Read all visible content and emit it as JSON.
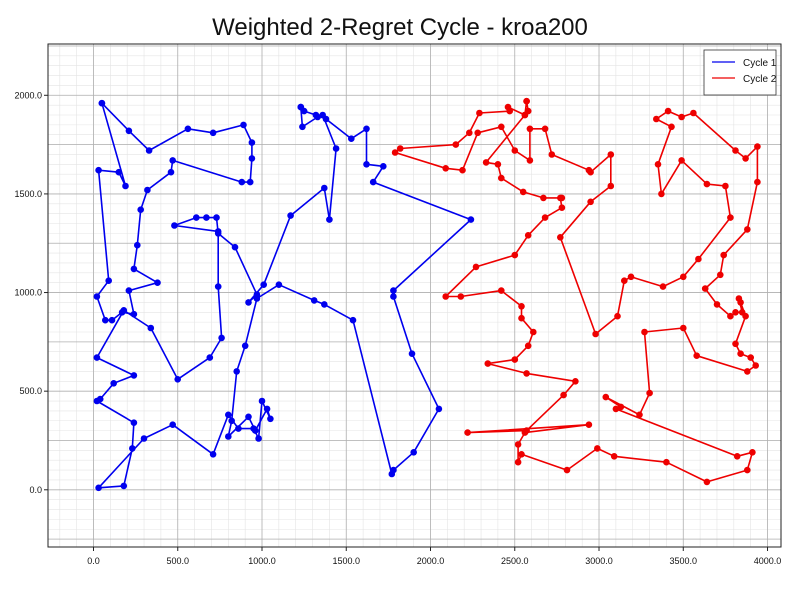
{
  "chart_data": {
    "type": "line",
    "title": "Weighted 2-Regret Cycle - kroa200",
    "xlabel": "",
    "ylabel": "",
    "xlim": [
      -270,
      4080
    ],
    "ylim": [
      -290,
      2260
    ],
    "xticks": [
      0,
      500,
      1000,
      1500,
      2000,
      2500,
      3000,
      3500,
      4000
    ],
    "yticks": [
      0,
      500,
      1000,
      1500,
      2000
    ],
    "xtick_labels": [
      "0.0",
      "500.0",
      "1000.0",
      "1500.0",
      "2000.0",
      "2500.0",
      "3000.0",
      "3500.0",
      "4000.0"
    ],
    "ytick_labels": [
      "0.0",
      "500.0",
      "1000.0",
      "1500.0",
      "2000.0"
    ],
    "grid": true,
    "minor_grid": true,
    "legend_position": "top-right",
    "series": [
      {
        "name": "Cycle 1",
        "color": "#0000ee",
        "points": [
          [
            50,
            1960
          ],
          [
            210,
            1820
          ],
          [
            330,
            1720
          ],
          [
            560,
            1830
          ],
          [
            710,
            1810
          ],
          [
            890,
            1850
          ],
          [
            940,
            1760
          ],
          [
            940,
            1680
          ],
          [
            930,
            1560
          ],
          [
            880,
            1560
          ],
          [
            470,
            1670
          ],
          [
            460,
            1610
          ],
          [
            320,
            1520
          ],
          [
            280,
            1420
          ],
          [
            260,
            1240
          ],
          [
            240,
            1120
          ],
          [
            380,
            1050
          ],
          [
            210,
            1010
          ],
          [
            240,
            890
          ],
          [
            170,
            900
          ],
          [
            110,
            860
          ],
          [
            70,
            860
          ],
          [
            20,
            980
          ],
          [
            90,
            1060
          ],
          [
            30,
            1620
          ],
          [
            150,
            1610
          ],
          [
            190,
            1540
          ],
          [
            50,
            1960
          ]
        ]
      },
      {
        "name": "Cycle 1",
        "color": "#0000ee",
        "points": [
          [
            1230,
            1940
          ],
          [
            1240,
            1840
          ],
          [
            1330,
            1890
          ],
          [
            1360,
            1900
          ],
          [
            1440,
            1730
          ],
          [
            1400,
            1370
          ],
          [
            1370,
            1530
          ],
          [
            1170,
            1390
          ],
          [
            1010,
            1040
          ],
          [
            920,
            950
          ],
          [
            970,
            990
          ],
          [
            840,
            1230
          ],
          [
            740,
            1300
          ],
          [
            730,
            1380
          ],
          [
            670,
            1380
          ],
          [
            610,
            1380
          ],
          [
            480,
            1340
          ],
          [
            740,
            1310
          ],
          [
            740,
            1030
          ],
          [
            760,
            770
          ],
          [
            690,
            670
          ],
          [
            500,
            560
          ],
          [
            340,
            820
          ],
          [
            180,
            910
          ],
          [
            20,
            670
          ],
          [
            240,
            580
          ],
          [
            120,
            540
          ],
          [
            40,
            460
          ],
          [
            20,
            450
          ],
          [
            240,
            340
          ],
          [
            230,
            210
          ],
          [
            180,
            20
          ],
          [
            30,
            10
          ],
          [
            300,
            260
          ],
          [
            470,
            330
          ],
          [
            710,
            180
          ],
          [
            800,
            380
          ],
          [
            860,
            310
          ],
          [
            950,
            310
          ],
          [
            980,
            260
          ],
          [
            1000,
            450
          ],
          [
            1050,
            360
          ],
          [
            1030,
            410
          ],
          [
            960,
            300
          ],
          [
            920,
            370
          ],
          [
            800,
            270
          ],
          [
            820,
            350
          ],
          [
            850,
            600
          ],
          [
            900,
            730
          ],
          [
            970,
            970
          ],
          [
            1100,
            1040
          ],
          [
            1310,
            960
          ],
          [
            1370,
            940
          ],
          [
            1540,
            860
          ],
          [
            1770,
            80
          ],
          [
            1780,
            100
          ],
          [
            1900,
            190
          ],
          [
            2050,
            410
          ],
          [
            1890,
            690
          ],
          [
            1780,
            980
          ],
          [
            1780,
            1010
          ],
          [
            2240,
            1370
          ],
          [
            1660,
            1560
          ],
          [
            1720,
            1640
          ],
          [
            1620,
            1650
          ],
          [
            1620,
            1830
          ],
          [
            1530,
            1780
          ],
          [
            1380,
            1880
          ],
          [
            1320,
            1900
          ],
          [
            1250,
            1920
          ],
          [
            1230,
            1940
          ]
        ]
      },
      {
        "name": "Cycle 2",
        "color": "#ee0000",
        "points": [
          [
            2570,
            1970
          ],
          [
            2580,
            1920
          ],
          [
            2560,
            1900
          ],
          [
            2460,
            1940
          ],
          [
            2470,
            1920
          ],
          [
            2290,
            1910
          ],
          [
            2230,
            1810
          ],
          [
            2150,
            1750
          ],
          [
            1820,
            1730
          ],
          [
            1790,
            1710
          ],
          [
            2090,
            1630
          ],
          [
            2190,
            1620
          ],
          [
            2280,
            1810
          ],
          [
            2420,
            1840
          ],
          [
            2500,
            1720
          ],
          [
            2590,
            1670
          ],
          [
            2590,
            1830
          ],
          [
            2680,
            1830
          ],
          [
            2720,
            1700
          ],
          [
            2940,
            1620
          ],
          [
            2950,
            1610
          ],
          [
            3070,
            1700
          ],
          [
            3070,
            1540
          ],
          [
            2950,
            1460
          ],
          [
            2770,
            1280
          ],
          [
            2980,
            790
          ],
          [
            3110,
            880
          ],
          [
            3150,
            1060
          ],
          [
            3190,
            1080
          ],
          [
            3380,
            1030
          ],
          [
            3500,
            1080
          ],
          [
            3590,
            1170
          ],
          [
            3780,
            1380
          ],
          [
            3750,
            1540
          ],
          [
            3640,
            1550
          ],
          [
            3490,
            1670
          ],
          [
            3370,
            1500
          ],
          [
            3350,
            1650
          ],
          [
            3430,
            1840
          ],
          [
            3340,
            1880
          ],
          [
            3410,
            1920
          ],
          [
            3490,
            1890
          ],
          [
            3560,
            1910
          ],
          [
            3810,
            1720
          ],
          [
            3870,
            1680
          ],
          [
            3940,
            1740
          ],
          [
            3940,
            1560
          ],
          [
            3880,
            1320
          ],
          [
            3740,
            1190
          ],
          [
            3720,
            1090
          ],
          [
            3630,
            1020
          ],
          [
            3700,
            940
          ],
          [
            3780,
            880
          ],
          [
            3810,
            900
          ],
          [
            3850,
            900
          ],
          [
            3830,
            970
          ],
          [
            3840,
            950
          ],
          [
            3870,
            880
          ],
          [
            3810,
            740
          ],
          [
            3840,
            690
          ],
          [
            3900,
            670
          ],
          [
            3930,
            630
          ],
          [
            3880,
            600
          ],
          [
            3580,
            680
          ],
          [
            3500,
            820
          ],
          [
            3270,
            800
          ],
          [
            3300,
            490
          ],
          [
            3240,
            380
          ],
          [
            3040,
            470
          ],
          [
            3130,
            420
          ],
          [
            3100,
            410
          ],
          [
            3820,
            170
          ],
          [
            3910,
            190
          ],
          [
            3880,
            100
          ],
          [
            3640,
            40
          ],
          [
            3400,
            140
          ],
          [
            3090,
            170
          ],
          [
            2990,
            210
          ],
          [
            2810,
            100
          ],
          [
            2540,
            180
          ],
          [
            2520,
            140
          ],
          [
            2520,
            230
          ],
          [
            2560,
            290
          ],
          [
            2940,
            330
          ],
          [
            2220,
            290
          ],
          [
            2570,
            300
          ],
          [
            2790,
            480
          ],
          [
            2860,
            550
          ],
          [
            2570,
            590
          ],
          [
            2340,
            640
          ],
          [
            2500,
            660
          ],
          [
            2580,
            730
          ],
          [
            2610,
            800
          ],
          [
            2540,
            870
          ],
          [
            2540,
            930
          ],
          [
            2420,
            1010
          ],
          [
            2180,
            980
          ],
          [
            2090,
            980
          ],
          [
            2270,
            1130
          ],
          [
            2500,
            1190
          ],
          [
            2580,
            1290
          ],
          [
            2680,
            1380
          ],
          [
            2780,
            1430
          ],
          [
            2770,
            1480
          ],
          [
            2780,
            1480
          ],
          [
            2670,
            1480
          ],
          [
            2550,
            1510
          ],
          [
            2420,
            1580
          ],
          [
            2400,
            1650
          ],
          [
            2330,
            1660
          ],
          [
            2560,
            1900
          ],
          [
            2570,
            1970
          ]
        ]
      }
    ],
    "legend": [
      {
        "label": "Cycle 1",
        "color": "#0000ee"
      },
      {
        "label": "Cycle 2",
        "color": "#ee0000"
      }
    ]
  }
}
